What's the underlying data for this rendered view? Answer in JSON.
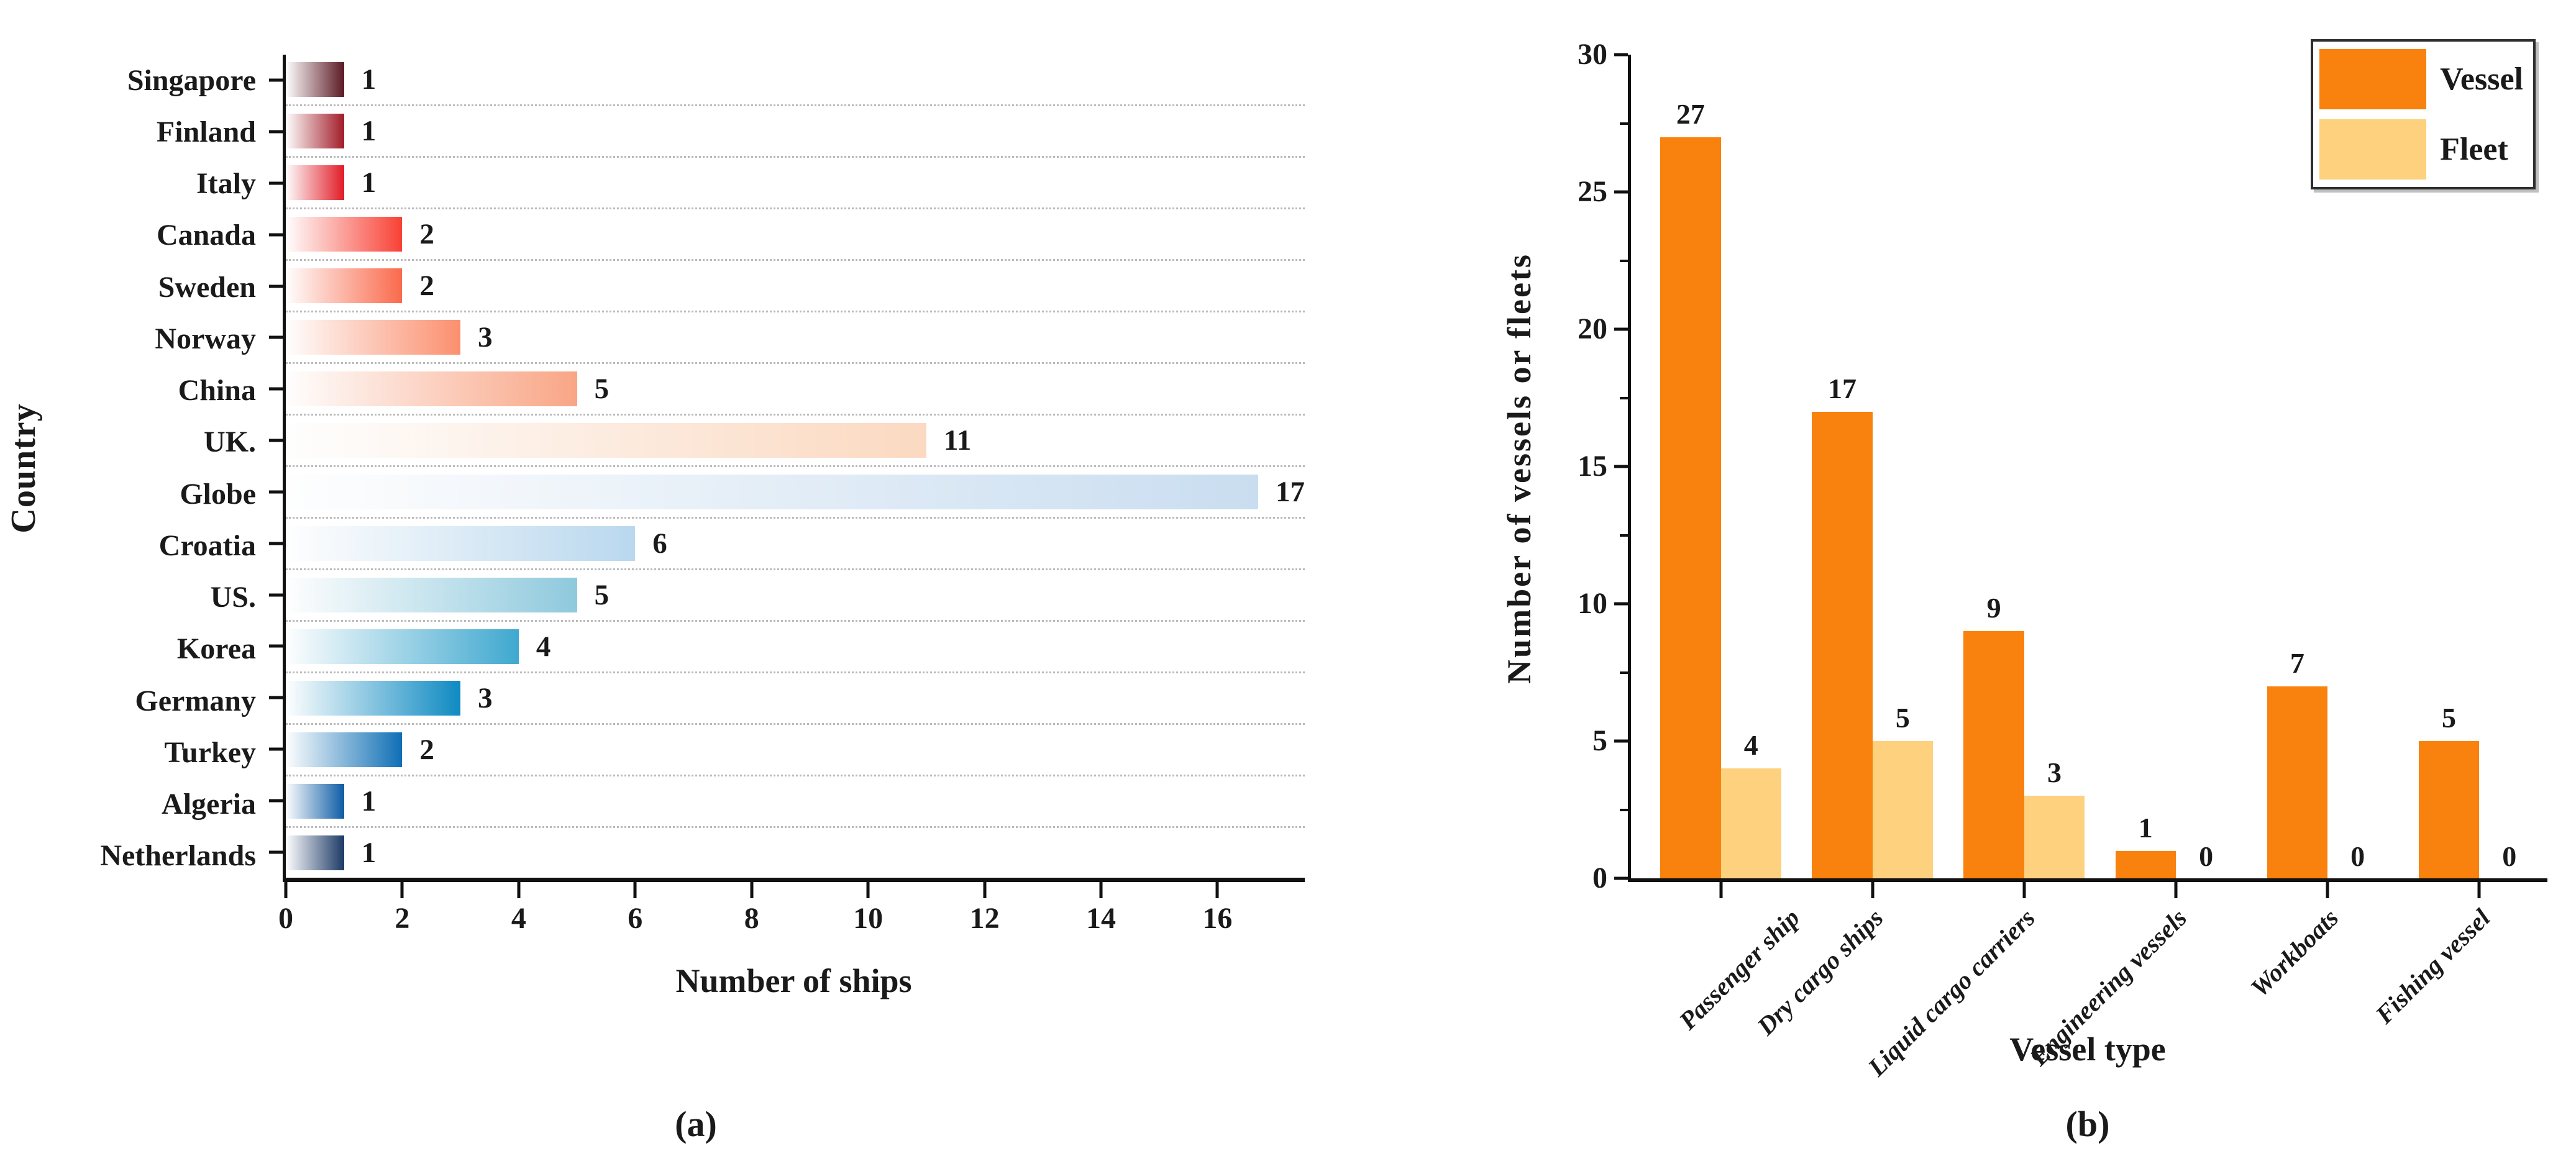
{
  "chart_data": [
    {
      "type": "bar",
      "panel": "a",
      "orientation": "horizontal",
      "ylabel": "Country",
      "xlabel": "Number of ships",
      "caption": "(a)",
      "categories": [
        "Singapore",
        "Finland",
        "Italy",
        "Canada",
        "Sweden",
        "Norway",
        "China",
        "UK.",
        "Globe",
        "Croatia",
        "US.",
        "Korea",
        "Germany",
        "Turkey",
        "Algeria",
        "Netherlands"
      ],
      "values": [
        1,
        1,
        1,
        2,
        2,
        3,
        5,
        11,
        17,
        6,
        5,
        4,
        3,
        2,
        1,
        1
      ],
      "bar_colors": [
        "#5C1A24",
        "#A21C28",
        "#E11B26",
        "#F84135",
        "#FA6A4C",
        "#FB8F6E",
        "#F9A585",
        "#FBD9C1",
        "#C9DDF0",
        "#B9D8EE",
        "#8EC9DD",
        "#3FA8CF",
        "#0E8AC2",
        "#0F6FB5",
        "#0D5CA6",
        "#1C3A66"
      ],
      "bar_style": "horizontal gradient, white at axis fading to full color at bar end",
      "xlim": [
        0,
        17.5
      ],
      "xticks": [
        0,
        2,
        4,
        6,
        8,
        10,
        12,
        14,
        16
      ],
      "grid": "dotted horizontal separator lines between category rows"
    },
    {
      "type": "bar",
      "panel": "b",
      "orientation": "vertical",
      "xlabel": "Vessel type",
      "ylabel": "Number of vessels or fleets",
      "caption": "(b)",
      "categories": [
        "Passenger ship",
        "Dry cargo ships",
        "Liquid cargo carriers",
        "Engineering vessels",
        "Workboats",
        "Fishing vessel"
      ],
      "series": [
        {
          "name": "Vessel",
          "color": "#F8820D",
          "values": [
            27,
            17,
            9,
            1,
            7,
            5
          ]
        },
        {
          "name": "Fleet",
          "color": "#FDD17E",
          "values": [
            4,
            5,
            3,
            0,
            0,
            0
          ]
        }
      ],
      "ylim": [
        0,
        30
      ],
      "yticks": [
        0,
        5,
        10,
        15,
        20,
        25,
        30
      ],
      "y_minor_tick_step": 2.5,
      "legend": {
        "position": "top-right"
      },
      "grid": "off"
    }
  ]
}
